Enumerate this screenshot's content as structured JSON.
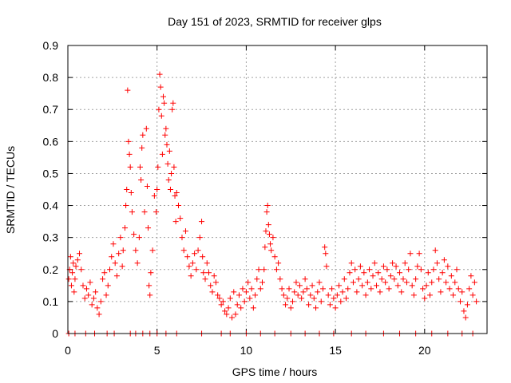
{
  "chart_data": {
    "type": "scatter",
    "title": "Day 151 of 2023, SRMTID for receiver glps",
    "xlabel": "GPS time / hours",
    "ylabel": "SRMTID / TECUs",
    "xlim": [
      0,
      23.5
    ],
    "ylim": [
      0,
      0.9
    ],
    "xticks": [
      {
        "value": 0,
        "label": "0"
      },
      {
        "value": 5,
        "label": "5"
      },
      {
        "value": 10,
        "label": "10"
      },
      {
        "value": 15,
        "label": "15"
      },
      {
        "value": 20,
        "label": "20"
      }
    ],
    "yticks": [
      {
        "value": 0,
        "label": "0"
      },
      {
        "value": 0.1,
        "label": "0.1"
      },
      {
        "value": 0.2,
        "label": "0.2"
      },
      {
        "value": 0.3,
        "label": "0.3"
      },
      {
        "value": 0.4,
        "label": "0.4"
      },
      {
        "value": 0.5,
        "label": "0.5"
      },
      {
        "value": 0.6,
        "label": "0.6"
      },
      {
        "value": 0.7,
        "label": "0.7"
      },
      {
        "value": 0.8,
        "label": "0.8"
      },
      {
        "value": 0.9,
        "label": "0.9"
      }
    ],
    "grid": true,
    "marker": "+",
    "series": [
      {
        "name": "SRMTID",
        "color": "#ff0000",
        "points": [
          [
            0.05,
            0.17
          ],
          [
            0.1,
            0.2
          ],
          [
            0.15,
            0.24
          ],
          [
            0.2,
            0.15
          ],
          [
            0.25,
            0.19
          ],
          [
            0.3,
            0.22
          ],
          [
            0.35,
            0.13
          ],
          [
            0.4,
            0.17
          ],
          [
            0.45,
            0.21
          ],
          [
            0.55,
            0.23
          ],
          [
            0.65,
            0.25
          ],
          [
            0.75,
            0.2
          ],
          [
            0.85,
            0.15
          ],
          [
            0.95,
            0.11
          ],
          [
            1.05,
            0.14
          ],
          [
            1.15,
            0.12
          ],
          [
            1.25,
            0.16
          ],
          [
            1.35,
            0.09
          ],
          [
            1.45,
            0.11
          ],
          [
            1.55,
            0.13
          ],
          [
            1.65,
            0.08
          ],
          [
            1.75,
            0.06
          ],
          [
            1.85,
            0.1
          ],
          [
            1.95,
            0.17
          ],
          [
            2.05,
            0.19
          ],
          [
            2.15,
            0.12
          ],
          [
            2.25,
            0.15
          ],
          [
            2.35,
            0.2
          ],
          [
            2.45,
            0.24
          ],
          [
            2.55,
            0.28
          ],
          [
            2.65,
            0.22
          ],
          [
            2.75,
            0.18
          ],
          [
            2.85,
            0.25
          ],
          [
            2.95,
            0.3
          ],
          [
            3.05,
            0.21
          ],
          [
            3.1,
            0.26
          ],
          [
            3.2,
            0.33
          ],
          [
            3.25,
            0.4
          ],
          [
            3.3,
            0.45
          ],
          [
            3.35,
            0.76
          ],
          [
            3.4,
            0.6
          ],
          [
            3.45,
            0.56
          ],
          [
            3.5,
            0.52
          ],
          [
            3.55,
            0.44
          ],
          [
            3.6,
            0.38
          ],
          [
            3.7,
            0.31
          ],
          [
            3.8,
            0.26
          ],
          [
            3.9,
            0.22
          ],
          [
            4.0,
            0.3
          ],
          [
            4.05,
            0.52
          ],
          [
            4.1,
            0.48
          ],
          [
            4.15,
            0.58
          ],
          [
            4.2,
            0.62
          ],
          [
            4.3,
            0.38
          ],
          [
            4.4,
            0.64
          ],
          [
            4.45,
            0.46
          ],
          [
            4.5,
            0.33
          ],
          [
            4.55,
            0.15
          ],
          [
            4.6,
            0.12
          ],
          [
            4.65,
            0.19
          ],
          [
            4.75,
            0.26
          ],
          [
            4.85,
            0.43
          ],
          [
            4.95,
            0.38
          ],
          [
            5.0,
            0.45
          ],
          [
            5.05,
            0.52
          ],
          [
            5.1,
            0.7
          ],
          [
            5.15,
            0.81
          ],
          [
            5.2,
            0.77
          ],
          [
            5.25,
            0.68
          ],
          [
            5.3,
            0.56
          ],
          [
            5.35,
            0.74
          ],
          [
            5.4,
            0.72
          ],
          [
            5.45,
            0.62
          ],
          [
            5.5,
            0.64
          ],
          [
            5.55,
            0.59
          ],
          [
            5.6,
            0.53
          ],
          [
            5.65,
            0.48
          ],
          [
            5.7,
            0.57
          ],
          [
            5.75,
            0.45
          ],
          [
            5.8,
            0.5
          ],
          [
            5.85,
            0.7
          ],
          [
            5.9,
            0.72
          ],
          [
            5.95,
            0.52
          ],
          [
            6.0,
            0.43
          ],
          [
            6.05,
            0.35
          ],
          [
            6.1,
            0.44
          ],
          [
            6.2,
            0.4
          ],
          [
            6.3,
            0.36
          ],
          [
            6.4,
            0.3
          ],
          [
            6.5,
            0.26
          ],
          [
            6.6,
            0.32
          ],
          [
            6.7,
            0.24
          ],
          [
            6.8,
            0.21
          ],
          [
            6.9,
            0.18
          ],
          [
            7.0,
            0.22
          ],
          [
            7.1,
            0.25
          ],
          [
            7.2,
            0.2
          ],
          [
            7.3,
            0.26
          ],
          [
            7.4,
            0.3
          ],
          [
            7.5,
            0.35
          ],
          [
            7.55,
            0.24
          ],
          [
            7.6,
            0.19
          ],
          [
            7.7,
            0.17
          ],
          [
            7.8,
            0.22
          ],
          [
            7.9,
            0.19
          ],
          [
            8.0,
            0.15
          ],
          [
            8.1,
            0.13
          ],
          [
            8.2,
            0.18
          ],
          [
            8.3,
            0.16
          ],
          [
            8.4,
            0.12
          ],
          [
            8.5,
            0.11
          ],
          [
            8.6,
            0.09
          ],
          [
            8.7,
            0.1
          ],
          [
            8.8,
            0.07
          ],
          [
            8.9,
            0.06
          ],
          [
            9.0,
            0.08
          ],
          [
            9.1,
            0.11
          ],
          [
            9.2,
            0.05
          ],
          [
            9.3,
            0.13
          ],
          [
            9.4,
            0.06
          ],
          [
            9.5,
            0.09
          ],
          [
            9.6,
            0.12
          ],
          [
            9.7,
            0.08
          ],
          [
            9.8,
            0.14
          ],
          [
            9.9,
            0.1
          ],
          [
            10.0,
            0.13
          ],
          [
            10.1,
            0.16
          ],
          [
            10.2,
            0.11
          ],
          [
            10.3,
            0.14
          ],
          [
            10.4,
            0.08
          ],
          [
            10.5,
            0.12
          ],
          [
            10.6,
            0.17
          ],
          [
            10.7,
            0.2
          ],
          [
            10.8,
            0.14
          ],
          [
            10.9,
            0.16
          ],
          [
            11.0,
            0.2
          ],
          [
            11.05,
            0.27
          ],
          [
            11.1,
            0.32
          ],
          [
            11.15,
            0.38
          ],
          [
            11.2,
            0.4
          ],
          [
            11.25,
            0.34
          ],
          [
            11.3,
            0.31
          ],
          [
            11.35,
            0.28
          ],
          [
            11.4,
            0.26
          ],
          [
            11.5,
            0.3
          ],
          [
            11.6,
            0.24
          ],
          [
            11.7,
            0.2
          ],
          [
            11.8,
            0.22
          ],
          [
            11.9,
            0.17
          ],
          [
            12.0,
            0.14
          ],
          [
            12.1,
            0.12
          ],
          [
            12.2,
            0.09
          ],
          [
            12.3,
            0.11
          ],
          [
            12.4,
            0.14
          ],
          [
            12.5,
            0.08
          ],
          [
            12.6,
            0.1
          ],
          [
            12.7,
            0.13
          ],
          [
            12.8,
            0.16
          ],
          [
            12.9,
            0.12
          ],
          [
            13.0,
            0.15
          ],
          [
            13.1,
            0.11
          ],
          [
            13.2,
            0.13
          ],
          [
            13.3,
            0.17
          ],
          [
            13.4,
            0.14
          ],
          [
            13.5,
            0.09
          ],
          [
            13.6,
            0.12
          ],
          [
            13.7,
            0.15
          ],
          [
            13.8,
            0.11
          ],
          [
            13.9,
            0.08
          ],
          [
            14.0,
            0.13
          ],
          [
            14.1,
            0.16
          ],
          [
            14.2,
            0.1
          ],
          [
            14.3,
            0.14
          ],
          [
            14.4,
            0.27
          ],
          [
            14.45,
            0.25
          ],
          [
            14.5,
            0.21
          ],
          [
            14.6,
            0.12
          ],
          [
            14.7,
            0.09
          ],
          [
            14.8,
            0.14
          ],
          [
            14.9,
            0.11
          ],
          [
            15.0,
            0.08
          ],
          [
            15.1,
            0.12
          ],
          [
            15.2,
            0.15
          ],
          [
            15.3,
            0.1
          ],
          [
            15.4,
            0.13
          ],
          [
            15.5,
            0.17
          ],
          [
            15.6,
            0.11
          ],
          [
            15.7,
            0.14
          ],
          [
            15.8,
            0.19
          ],
          [
            15.9,
            0.22
          ],
          [
            16.0,
            0.16
          ],
          [
            16.1,
            0.2
          ],
          [
            16.2,
            0.13
          ],
          [
            16.3,
            0.17
          ],
          [
            16.4,
            0.21
          ],
          [
            16.5,
            0.15
          ],
          [
            16.6,
            0.19
          ],
          [
            16.7,
            0.12
          ],
          [
            16.8,
            0.16
          ],
          [
            16.9,
            0.2
          ],
          [
            17.0,
            0.14
          ],
          [
            17.1,
            0.18
          ],
          [
            17.2,
            0.22
          ],
          [
            17.3,
            0.15
          ],
          [
            17.4,
            0.19
          ],
          [
            17.5,
            0.13
          ],
          [
            17.6,
            0.17
          ],
          [
            17.7,
            0.21
          ],
          [
            17.8,
            0.16
          ],
          [
            17.9,
            0.2
          ],
          [
            18.0,
            0.14
          ],
          [
            18.1,
            0.18
          ],
          [
            18.2,
            0.22
          ],
          [
            18.3,
            0.17
          ],
          [
            18.4,
            0.21
          ],
          [
            18.5,
            0.15
          ],
          [
            18.6,
            0.19
          ],
          [
            18.7,
            0.13
          ],
          [
            18.8,
            0.17
          ],
          [
            18.9,
            0.22
          ],
          [
            19.0,
            0.16
          ],
          [
            19.1,
            0.2
          ],
          [
            19.2,
            0.25
          ],
          [
            19.3,
            0.15
          ],
          [
            19.4,
            0.12
          ],
          [
            19.5,
            0.17
          ],
          [
            19.6,
            0.21
          ],
          [
            19.7,
            0.25
          ],
          [
            19.8,
            0.2
          ],
          [
            19.9,
            0.14
          ],
          [
            20.0,
            0.11
          ],
          [
            20.1,
            0.15
          ],
          [
            20.2,
            0.19
          ],
          [
            20.3,
            0.12
          ],
          [
            20.4,
            0.16
          ],
          [
            20.5,
            0.2
          ],
          [
            20.6,
            0.26
          ],
          [
            20.7,
            0.22
          ],
          [
            20.8,
            0.17
          ],
          [
            20.9,
            0.13
          ],
          [
            21.0,
            0.19
          ],
          [
            21.1,
            0.23
          ],
          [
            21.2,
            0.16
          ],
          [
            21.3,
            0.21
          ],
          [
            21.4,
            0.14
          ],
          [
            21.5,
            0.18
          ],
          [
            21.6,
            0.12
          ],
          [
            21.7,
            0.16
          ],
          [
            21.8,
            0.2
          ],
          [
            21.9,
            0.14
          ],
          [
            22.0,
            0.1
          ],
          [
            22.1,
            0.13
          ],
          [
            22.2,
            0.07
          ],
          [
            22.3,
            0.05
          ],
          [
            22.4,
            0.09
          ],
          [
            22.5,
            0.14
          ],
          [
            22.6,
            0.18
          ],
          [
            22.7,
            0.12
          ],
          [
            22.8,
            0.16
          ],
          [
            22.9,
            0.1
          ]
        ]
      },
      {
        "name": "zero-level",
        "color": "#ff0000",
        "points": [
          [
            0.05,
            0
          ],
          [
            0.4,
            0
          ],
          [
            1.0,
            0
          ],
          [
            1.5,
            0
          ],
          [
            2.2,
            0
          ],
          [
            2.6,
            0
          ],
          [
            3.5,
            0
          ],
          [
            3.8,
            0
          ],
          [
            4.2,
            0
          ],
          [
            4.6,
            0
          ],
          [
            5.0,
            0
          ],
          [
            5.5,
            0
          ],
          [
            6.1,
            0
          ],
          [
            7.5,
            0
          ],
          [
            8.6,
            0
          ],
          [
            9.1,
            0
          ],
          [
            10.0,
            0
          ],
          [
            10.8,
            0
          ],
          [
            11.6,
            0
          ],
          [
            12.5,
            0
          ],
          [
            13.3,
            0
          ],
          [
            14.1,
            0
          ],
          [
            14.9,
            0
          ],
          [
            15.9,
            0
          ],
          [
            16.7,
            0
          ],
          [
            17.7,
            0
          ],
          [
            18.6,
            0
          ],
          [
            19.5,
            0
          ],
          [
            20.4,
            0
          ],
          [
            21.3,
            0
          ],
          [
            22.1,
            0
          ],
          [
            22.7,
            0
          ]
        ]
      }
    ]
  }
}
